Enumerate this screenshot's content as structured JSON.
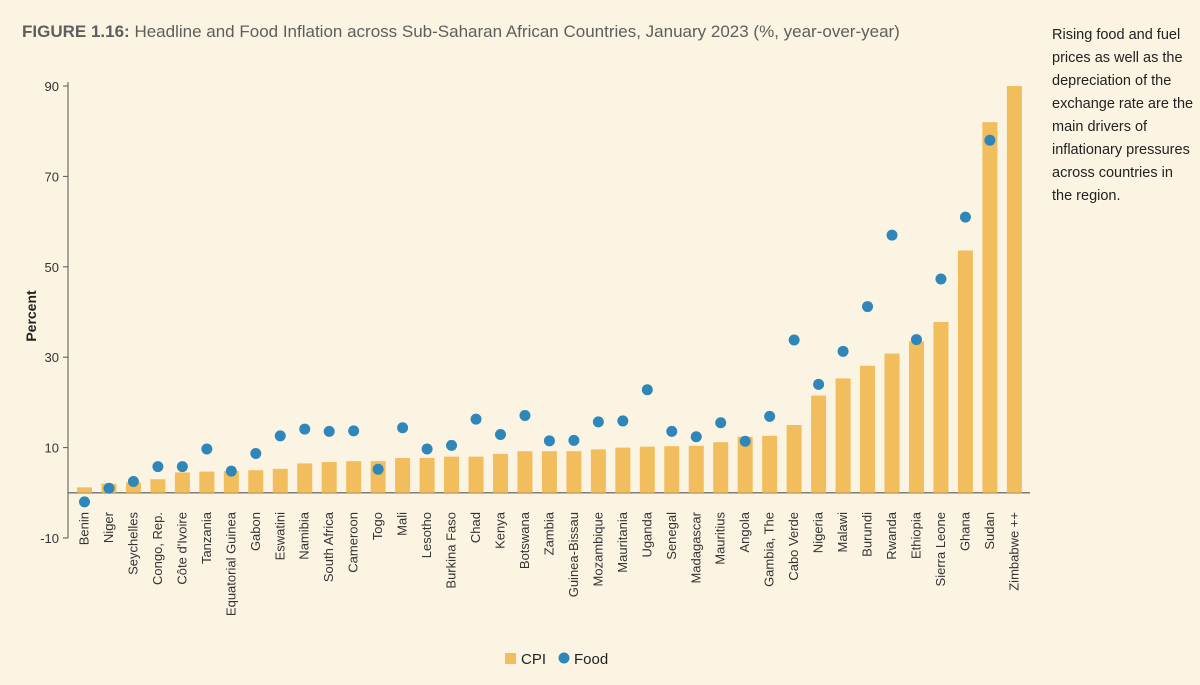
{
  "figure": {
    "label": "FIGURE 1.16:",
    "title": "Headline and Food Inflation across Sub-Saharan African Countries, January 2023 (%, year-over-year)"
  },
  "side_note": "Rising food and fuel prices as well as the depreciation of the exchange rate are the main drivers of inflationary pressures across countries in the region.",
  "colors": {
    "cpi": "#f2bd5c",
    "food": "#2f86b8",
    "background": "#fbf4e3",
    "axis": "#555555"
  },
  "chart_data": {
    "type": "bar",
    "ylabel": "Percent",
    "ylim": [
      -10,
      90
    ],
    "yticks": [
      -10,
      10,
      30,
      50,
      70,
      90
    ],
    "grid": false,
    "legend_position": "bottom",
    "categories": [
      "Benin",
      "Niger",
      "Seychelles",
      "Congo, Rep.",
      "Côte d'Ivoire",
      "Tanzania",
      "Equatorial Guinea",
      "Gabon",
      "Eswatini",
      "Namibia",
      "South Africa",
      "Cameroon",
      "Togo",
      "Mali",
      "Lesotho",
      "Burkina Faso",
      "Chad",
      "Kenya",
      "Botswana",
      "Zambia",
      "Guinea-Bissau",
      "Mozambique",
      "Mauritania",
      "Uganda",
      "Senegal",
      "Madagascar",
      "Mauritius",
      "Angola",
      "Gambia, The",
      "Cabo Verde",
      "Nigeria",
      "Malawi",
      "Burundi",
      "Rwanda",
      "Ethiopia",
      "Sierra Leone",
      "Ghana",
      "Sudan",
      "Zimbabwe ++"
    ],
    "series": [
      {
        "name": "CPI",
        "type": "bar",
        "values": [
          1.2,
          2.0,
          2.3,
          3.0,
          4.5,
          4.7,
          4.8,
          5.0,
          5.3,
          6.5,
          6.8,
          7.0,
          7.0,
          7.7,
          7.7,
          8.0,
          8.0,
          8.6,
          9.2,
          9.2,
          9.2,
          9.6,
          10.0,
          10.2,
          10.3,
          10.4,
          11.2,
          12.4,
          12.6,
          15.0,
          21.5,
          25.3,
          28.1,
          30.8,
          33.5,
          37.8,
          53.6,
          82.0,
          90.0
        ]
      },
      {
        "name": "Food",
        "type": "scatter",
        "values": [
          -2.0,
          1.0,
          2.5,
          5.8,
          5.8,
          9.7,
          4.8,
          8.7,
          12.6,
          14.1,
          13.6,
          13.7,
          5.2,
          14.4,
          9.7,
          10.5,
          16.3,
          12.9,
          17.1,
          11.5,
          11.6,
          15.7,
          15.9,
          22.8,
          13.6,
          12.4,
          15.5,
          11.4,
          16.9,
          33.8,
          24.0,
          31.3,
          41.2,
          57.0,
          33.9,
          47.3,
          61.0,
          78.0,
          null
        ]
      }
    ],
    "legend": [
      "CPI",
      "Food"
    ]
  }
}
